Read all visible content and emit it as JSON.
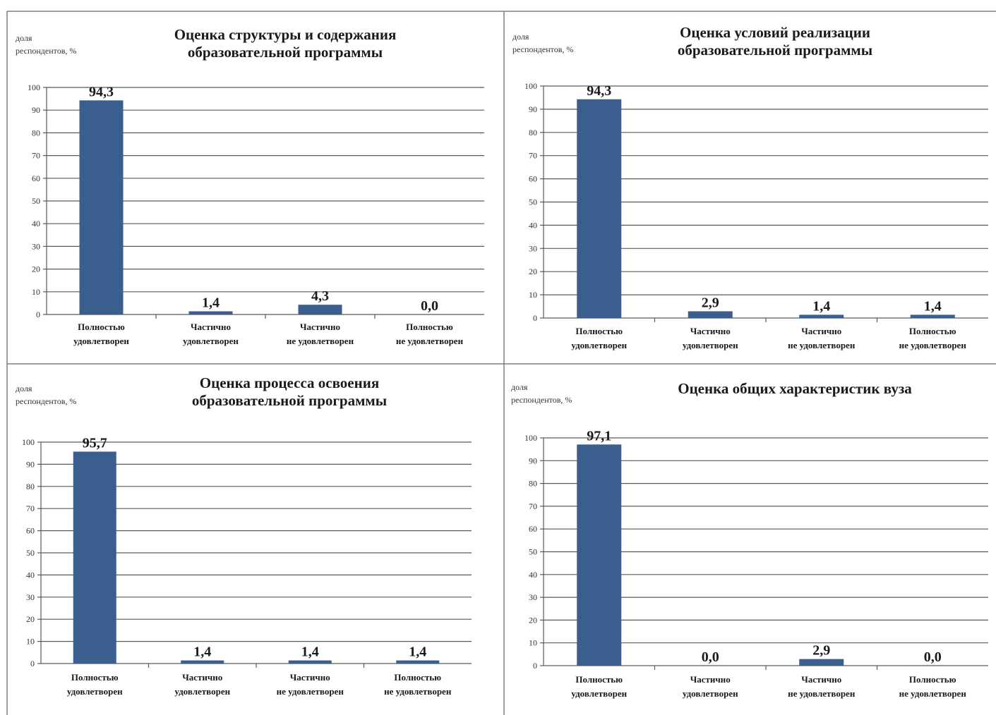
{
  "colors": {
    "bar": "#3a5f8f",
    "grid": "#595959",
    "border": "#7f7f7f"
  },
  "chart_data": [
    {
      "type": "bar",
      "title": [
        "Оценка структуры и содержания",
        "образовательной программы"
      ],
      "ylabel": [
        "доля",
        "респондентов, %"
      ],
      "categories": [
        [
          "Полностью",
          "удовлетворен"
        ],
        [
          "Частично",
          "удовлетворен"
        ],
        [
          "Частично",
          "не удовлетворен"
        ],
        [
          "Полностью",
          "не удовлетворен"
        ]
      ],
      "values": [
        94.3,
        1.4,
        4.3,
        0.0
      ],
      "labels": [
        "94,3",
        "1,4",
        "4,3",
        "0,0"
      ],
      "ylim": [
        0,
        100
      ],
      "yticks": [
        0,
        10,
        20,
        30,
        40,
        50,
        60,
        70,
        80,
        90,
        100
      ],
      "grid": true
    },
    {
      "type": "bar",
      "title": [
        "Оценка условий реализации",
        "образовательной программы"
      ],
      "ylabel": [
        "доля",
        "респондентов, %"
      ],
      "categories": [
        [
          "Полностью",
          "удовлетворен"
        ],
        [
          "Частично",
          "удовлетворен"
        ],
        [
          "Частично",
          "не удовлетворен"
        ],
        [
          "Полностью",
          "не удовлетворен"
        ]
      ],
      "values": [
        94.3,
        2.9,
        1.4,
        1.4
      ],
      "labels": [
        "94,3",
        "2,9",
        "1,4",
        "1,4"
      ],
      "ylim": [
        0,
        100
      ],
      "yticks": [
        0,
        10,
        20,
        30,
        40,
        50,
        60,
        70,
        80,
        90,
        100
      ],
      "grid": true
    },
    {
      "type": "bar",
      "title": [
        "Оценка процесса освоения",
        "образовательной программы"
      ],
      "ylabel": [
        "доля",
        "респондентов, %"
      ],
      "categories": [
        [
          "Полностью",
          "удовлетворен"
        ],
        [
          "Частично",
          "удовлетворен"
        ],
        [
          "Частично",
          "не удовлетворен"
        ],
        [
          "Полностью",
          "не удовлетворен"
        ]
      ],
      "values": [
        95.7,
        1.4,
        1.4,
        1.4
      ],
      "labels": [
        "95,7",
        "1,4",
        "1,4",
        "1,4"
      ],
      "ylim": [
        0,
        100
      ],
      "yticks": [
        0,
        10,
        20,
        30,
        40,
        50,
        60,
        70,
        80,
        90,
        100
      ],
      "grid": true
    },
    {
      "type": "bar",
      "title": [
        "Оценка общих характеристик вуза"
      ],
      "ylabel": [
        "доля",
        "респондентов, %"
      ],
      "categories": [
        [
          "Полностью",
          "удовлетворен"
        ],
        [
          "Частично",
          "удовлетворен"
        ],
        [
          "Частично",
          "не удовлетворен"
        ],
        [
          "Полностью",
          "не удовлетворен"
        ]
      ],
      "values": [
        97.1,
        0.0,
        2.9,
        0.0
      ],
      "labels": [
        "97,1",
        "0,0",
        "2,9",
        "0,0"
      ],
      "ylim": [
        0,
        100
      ],
      "yticks": [
        0,
        10,
        20,
        30,
        40,
        50,
        60,
        70,
        80,
        90,
        100
      ],
      "grid": true
    }
  ]
}
